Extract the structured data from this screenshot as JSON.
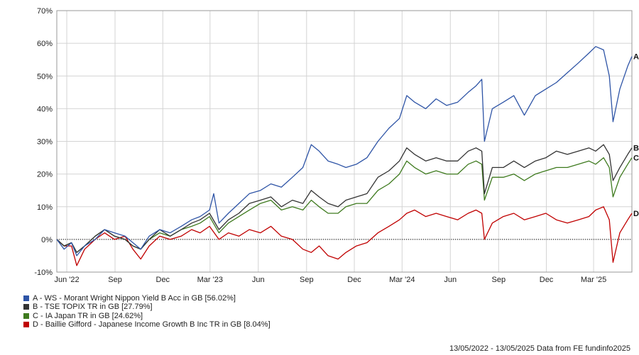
{
  "chart_data": {
    "type": "line",
    "xlim": [
      "2022-05-13",
      "2025-05-13"
    ],
    "ylim": [
      -10,
      70
    ],
    "y_ticks": [
      -10,
      0,
      10,
      20,
      30,
      40,
      50,
      60,
      70
    ],
    "y_tick_labels": [
      "-10%",
      "0%",
      "10%",
      "20%",
      "30%",
      "40%",
      "50%",
      "60%",
      "70%"
    ],
    "x_ticks": [
      {
        "date": "2022-06-01",
        "label": "Jun '22"
      },
      {
        "date": "2022-09-01",
        "label": "Sep"
      },
      {
        "date": "2022-12-01",
        "label": "Dec"
      },
      {
        "date": "2023-03-01",
        "label": "Mar '23"
      },
      {
        "date": "2023-06-01",
        "label": "Jun"
      },
      {
        "date": "2023-09-01",
        "label": "Sep"
      },
      {
        "date": "2023-12-01",
        "label": "Dec"
      },
      {
        "date": "2024-03-01",
        "label": "Mar '24"
      },
      {
        "date": "2024-06-01",
        "label": "Jun"
      },
      {
        "date": "2024-09-01",
        "label": "Sep"
      },
      {
        "date": "2024-12-01",
        "label": "Dec"
      },
      {
        "date": "2025-03-01",
        "label": "Mar '25"
      }
    ],
    "grid": true,
    "legend_position": "bottom-left",
    "series": [
      {
        "name": "A - WS - Morant Wright Nippon Yield B Acc in GB [56.02%]",
        "end_label": "A",
        "color": "#2e54a6",
        "points": [
          [
            "2022-05-13",
            0
          ],
          [
            "2022-05-27",
            -3
          ],
          [
            "2022-06-10",
            -1
          ],
          [
            "2022-06-20",
            -5
          ],
          [
            "2022-07-05",
            -2
          ],
          [
            "2022-07-25",
            0
          ],
          [
            "2022-08-12",
            3
          ],
          [
            "2022-08-31",
            2
          ],
          [
            "2022-09-20",
            1
          ],
          [
            "2022-10-05",
            -1
          ],
          [
            "2022-10-20",
            -3
          ],
          [
            "2022-11-05",
            1
          ],
          [
            "2022-11-25",
            3
          ],
          [
            "2022-12-15",
            2
          ],
          [
            "2023-01-05",
            4
          ],
          [
            "2023-01-25",
            6
          ],
          [
            "2023-02-10",
            7
          ],
          [
            "2023-02-28",
            9
          ],
          [
            "2023-03-08",
            14
          ],
          [
            "2023-03-18",
            5
          ],
          [
            "2023-04-05",
            8
          ],
          [
            "2023-04-25",
            11
          ],
          [
            "2023-05-15",
            14
          ],
          [
            "2023-06-05",
            15
          ],
          [
            "2023-06-25",
            17
          ],
          [
            "2023-07-15",
            16
          ],
          [
            "2023-08-05",
            19
          ],
          [
            "2023-08-25",
            22
          ],
          [
            "2023-09-10",
            29
          ],
          [
            "2023-09-25",
            27
          ],
          [
            "2023-10-12",
            24
          ],
          [
            "2023-10-31",
            23
          ],
          [
            "2023-11-15",
            22
          ],
          [
            "2023-12-05",
            23
          ],
          [
            "2023-12-25",
            25
          ],
          [
            "2024-01-15",
            30
          ],
          [
            "2024-02-05",
            34
          ],
          [
            "2024-02-25",
            37
          ],
          [
            "2024-03-10",
            44
          ],
          [
            "2024-03-25",
            42
          ],
          [
            "2024-04-15",
            40
          ],
          [
            "2024-05-05",
            43
          ],
          [
            "2024-05-25",
            41
          ],
          [
            "2024-06-15",
            42
          ],
          [
            "2024-07-05",
            45
          ],
          [
            "2024-07-20",
            47
          ],
          [
            "2024-07-31",
            49
          ],
          [
            "2024-08-05",
            30
          ],
          [
            "2024-08-20",
            40
          ],
          [
            "2024-09-10",
            42
          ],
          [
            "2024-09-30",
            44
          ],
          [
            "2024-10-20",
            38
          ],
          [
            "2024-11-10",
            44
          ],
          [
            "2024-11-30",
            46
          ],
          [
            "2024-12-20",
            48
          ],
          [
            "2025-01-10",
            51
          ],
          [
            "2025-01-31",
            54
          ],
          [
            "2025-02-20",
            57
          ],
          [
            "2025-03-05",
            59
          ],
          [
            "2025-03-20",
            58
          ],
          [
            "2025-03-31",
            50
          ],
          [
            "2025-04-07",
            36
          ],
          [
            "2025-04-20",
            46
          ],
          [
            "2025-05-05",
            53
          ],
          [
            "2025-05-13",
            56
          ]
        ]
      },
      {
        "name": "B - TSE TOPIX TR in GB [27.79%]",
        "end_label": "B",
        "color": "#333333",
        "points": [
          [
            "2022-05-13",
            0
          ],
          [
            "2022-05-27",
            -2
          ],
          [
            "2022-06-10",
            -1
          ],
          [
            "2022-06-20",
            -4
          ],
          [
            "2022-07-05",
            -2
          ],
          [
            "2022-07-25",
            1
          ],
          [
            "2022-08-12",
            3
          ],
          [
            "2022-08-31",
            1
          ],
          [
            "2022-09-20",
            0
          ],
          [
            "2022-10-05",
            -2
          ],
          [
            "2022-10-20",
            -3
          ],
          [
            "2022-11-05",
            0
          ],
          [
            "2022-11-25",
            3
          ],
          [
            "2022-12-15",
            1
          ],
          [
            "2023-01-05",
            3
          ],
          [
            "2023-01-25",
            5
          ],
          [
            "2023-02-10",
            6
          ],
          [
            "2023-02-28",
            8
          ],
          [
            "2023-03-18",
            3
          ],
          [
            "2023-04-05",
            6
          ],
          [
            "2023-04-25",
            8
          ],
          [
            "2023-05-15",
            11
          ],
          [
            "2023-06-05",
            12
          ],
          [
            "2023-06-25",
            13
          ],
          [
            "2023-07-15",
            10
          ],
          [
            "2023-08-05",
            12
          ],
          [
            "2023-08-25",
            11
          ],
          [
            "2023-09-10",
            15
          ],
          [
            "2023-09-25",
            13
          ],
          [
            "2023-10-12",
            11
          ],
          [
            "2023-10-31",
            10
          ],
          [
            "2023-11-15",
            12
          ],
          [
            "2023-12-05",
            13
          ],
          [
            "2023-12-25",
            14
          ],
          [
            "2024-01-15",
            19
          ],
          [
            "2024-02-05",
            21
          ],
          [
            "2024-02-25",
            24
          ],
          [
            "2024-03-10",
            28
          ],
          [
            "2024-03-25",
            26
          ],
          [
            "2024-04-15",
            24
          ],
          [
            "2024-05-05",
            25
          ],
          [
            "2024-05-25",
            24
          ],
          [
            "2024-06-15",
            24
          ],
          [
            "2024-07-05",
            27
          ],
          [
            "2024-07-20",
            28
          ],
          [
            "2024-07-31",
            27
          ],
          [
            "2024-08-05",
            14
          ],
          [
            "2024-08-20",
            22
          ],
          [
            "2024-09-10",
            22
          ],
          [
            "2024-09-30",
            24
          ],
          [
            "2024-10-20",
            22
          ],
          [
            "2024-11-10",
            24
          ],
          [
            "2024-11-30",
            25
          ],
          [
            "2024-12-20",
            27
          ],
          [
            "2025-01-10",
            26
          ],
          [
            "2025-01-31",
            27
          ],
          [
            "2025-02-20",
            28
          ],
          [
            "2025-03-05",
            27
          ],
          [
            "2025-03-20",
            29
          ],
          [
            "2025-03-31",
            26
          ],
          [
            "2025-04-07",
            18
          ],
          [
            "2025-04-20",
            22
          ],
          [
            "2025-05-05",
            26
          ],
          [
            "2025-05-13",
            28
          ]
        ]
      },
      {
        "name": "C - IA Japan TR in GB [24.62%]",
        "end_label": "C",
        "color": "#3e7a1e",
        "points": [
          [
            "2022-05-13",
            0
          ],
          [
            "2022-05-27",
            -2
          ],
          [
            "2022-06-10",
            -1
          ],
          [
            "2022-06-20",
            -4
          ],
          [
            "2022-07-05",
            -2
          ],
          [
            "2022-07-25",
            1
          ],
          [
            "2022-08-12",
            3
          ],
          [
            "2022-08-31",
            1
          ],
          [
            "2022-09-20",
            0
          ],
          [
            "2022-10-05",
            -2
          ],
          [
            "2022-10-20",
            -3
          ],
          [
            "2022-11-05",
            0
          ],
          [
            "2022-11-25",
            2
          ],
          [
            "2022-12-15",
            1
          ],
          [
            "2023-01-05",
            3
          ],
          [
            "2023-01-25",
            4
          ],
          [
            "2023-02-10",
            5
          ],
          [
            "2023-02-28",
            7
          ],
          [
            "2023-03-18",
            2
          ],
          [
            "2023-04-05",
            5
          ],
          [
            "2023-04-25",
            7
          ],
          [
            "2023-05-15",
            9
          ],
          [
            "2023-06-05",
            11
          ],
          [
            "2023-06-25",
            12
          ],
          [
            "2023-07-15",
            9
          ],
          [
            "2023-08-05",
            10
          ],
          [
            "2023-08-25",
            9
          ],
          [
            "2023-09-10",
            12
          ],
          [
            "2023-09-25",
            10
          ],
          [
            "2023-10-12",
            8
          ],
          [
            "2023-10-31",
            8
          ],
          [
            "2023-11-15",
            10
          ],
          [
            "2023-12-05",
            11
          ],
          [
            "2023-12-25",
            11
          ],
          [
            "2024-01-15",
            15
          ],
          [
            "2024-02-05",
            17
          ],
          [
            "2024-02-25",
            20
          ],
          [
            "2024-03-10",
            24
          ],
          [
            "2024-03-25",
            22
          ],
          [
            "2024-04-15",
            20
          ],
          [
            "2024-05-05",
            21
          ],
          [
            "2024-05-25",
            20
          ],
          [
            "2024-06-15",
            20
          ],
          [
            "2024-07-05",
            23
          ],
          [
            "2024-07-20",
            24
          ],
          [
            "2024-07-31",
            23
          ],
          [
            "2024-08-05",
            12
          ],
          [
            "2024-08-20",
            19
          ],
          [
            "2024-09-10",
            19
          ],
          [
            "2024-09-30",
            20
          ],
          [
            "2024-10-20",
            18
          ],
          [
            "2024-11-10",
            20
          ],
          [
            "2024-11-30",
            21
          ],
          [
            "2024-12-20",
            22
          ],
          [
            "2025-01-10",
            22
          ],
          [
            "2025-01-31",
            23
          ],
          [
            "2025-02-20",
            24
          ],
          [
            "2025-03-05",
            23
          ],
          [
            "2025-03-20",
            25
          ],
          [
            "2025-03-31",
            22
          ],
          [
            "2025-04-07",
            13
          ],
          [
            "2025-04-20",
            19
          ],
          [
            "2025-05-05",
            23
          ],
          [
            "2025-05-13",
            25
          ]
        ]
      },
      {
        "name": "D - Baillie Gifford - Japanese Income Growth B Inc TR in GB [8.04%]",
        "end_label": "D",
        "color": "#c00000",
        "points": [
          [
            "2022-05-13",
            0
          ],
          [
            "2022-05-27",
            -2
          ],
          [
            "2022-06-10",
            -2
          ],
          [
            "2022-06-20",
            -8
          ],
          [
            "2022-07-05",
            -3
          ],
          [
            "2022-07-25",
            0
          ],
          [
            "2022-08-12",
            2
          ],
          [
            "2022-08-31",
            0
          ],
          [
            "2022-09-20",
            1
          ],
          [
            "2022-10-05",
            -3
          ],
          [
            "2022-10-20",
            -6
          ],
          [
            "2022-11-05",
            -2
          ],
          [
            "2022-11-25",
            1
          ],
          [
            "2022-12-15",
            0
          ],
          [
            "2023-01-05",
            1
          ],
          [
            "2023-01-25",
            3
          ],
          [
            "2023-02-10",
            2
          ],
          [
            "2023-02-28",
            4
          ],
          [
            "2023-03-18",
            0
          ],
          [
            "2023-04-05",
            2
          ],
          [
            "2023-04-25",
            1
          ],
          [
            "2023-05-15",
            3
          ],
          [
            "2023-06-05",
            2
          ],
          [
            "2023-06-25",
            4
          ],
          [
            "2023-07-15",
            1
          ],
          [
            "2023-08-05",
            0
          ],
          [
            "2023-08-25",
            -3
          ],
          [
            "2023-09-10",
            -4
          ],
          [
            "2023-09-25",
            -2
          ],
          [
            "2023-10-12",
            -5
          ],
          [
            "2023-10-31",
            -6
          ],
          [
            "2023-11-15",
            -4
          ],
          [
            "2023-12-05",
            -2
          ],
          [
            "2023-12-25",
            -1
          ],
          [
            "2024-01-15",
            2
          ],
          [
            "2024-02-05",
            4
          ],
          [
            "2024-02-25",
            6
          ],
          [
            "2024-03-10",
            8
          ],
          [
            "2024-03-25",
            9
          ],
          [
            "2024-04-15",
            7
          ],
          [
            "2024-05-05",
            8
          ],
          [
            "2024-05-25",
            7
          ],
          [
            "2024-06-15",
            6
          ],
          [
            "2024-07-05",
            8
          ],
          [
            "2024-07-20",
            9
          ],
          [
            "2024-07-31",
            8
          ],
          [
            "2024-08-05",
            0
          ],
          [
            "2024-08-20",
            5
          ],
          [
            "2024-09-10",
            7
          ],
          [
            "2024-09-30",
            8
          ],
          [
            "2024-10-20",
            6
          ],
          [
            "2024-11-10",
            7
          ],
          [
            "2024-11-30",
            8
          ],
          [
            "2024-12-20",
            6
          ],
          [
            "2025-01-10",
            5
          ],
          [
            "2025-01-31",
            6
          ],
          [
            "2025-02-20",
            7
          ],
          [
            "2025-03-05",
            9
          ],
          [
            "2025-03-20",
            10
          ],
          [
            "2025-03-31",
            6
          ],
          [
            "2025-04-07",
            -7
          ],
          [
            "2025-04-20",
            2
          ],
          [
            "2025-05-05",
            6
          ],
          [
            "2025-05-13",
            8
          ]
        ]
      }
    ]
  },
  "footer": {
    "text": "13/05/2022 - 13/05/2025 Data from FE fundinfo2025"
  }
}
